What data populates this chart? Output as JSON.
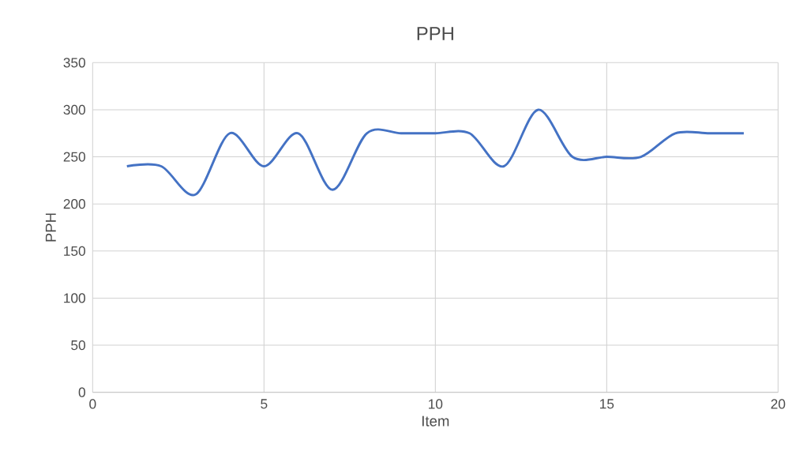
{
  "chart_data": {
    "type": "line",
    "title": "PPH",
    "xlabel": "Item",
    "ylabel": "PPH",
    "x": [
      1,
      2,
      3,
      4,
      5,
      6,
      7,
      8,
      9,
      10,
      11,
      12,
      13,
      14,
      15,
      16,
      17,
      18,
      19
    ],
    "series": [
      {
        "color": "#4472c4",
        "values": [
          240,
          240,
          210,
          275,
          240,
          275,
          215,
          275,
          275,
          275,
          275,
          240,
          300,
          250,
          250,
          250,
          275,
          275,
          275
        ]
      }
    ],
    "xlim": [
      0,
      20
    ],
    "xticks": [
      0,
      5,
      10,
      15,
      20
    ],
    "ylim": [
      0,
      350
    ],
    "yticks": [
      0,
      50,
      100,
      150,
      200,
      250,
      300,
      350
    ],
    "grid": true,
    "marker": "none",
    "line_style": "solid"
  }
}
